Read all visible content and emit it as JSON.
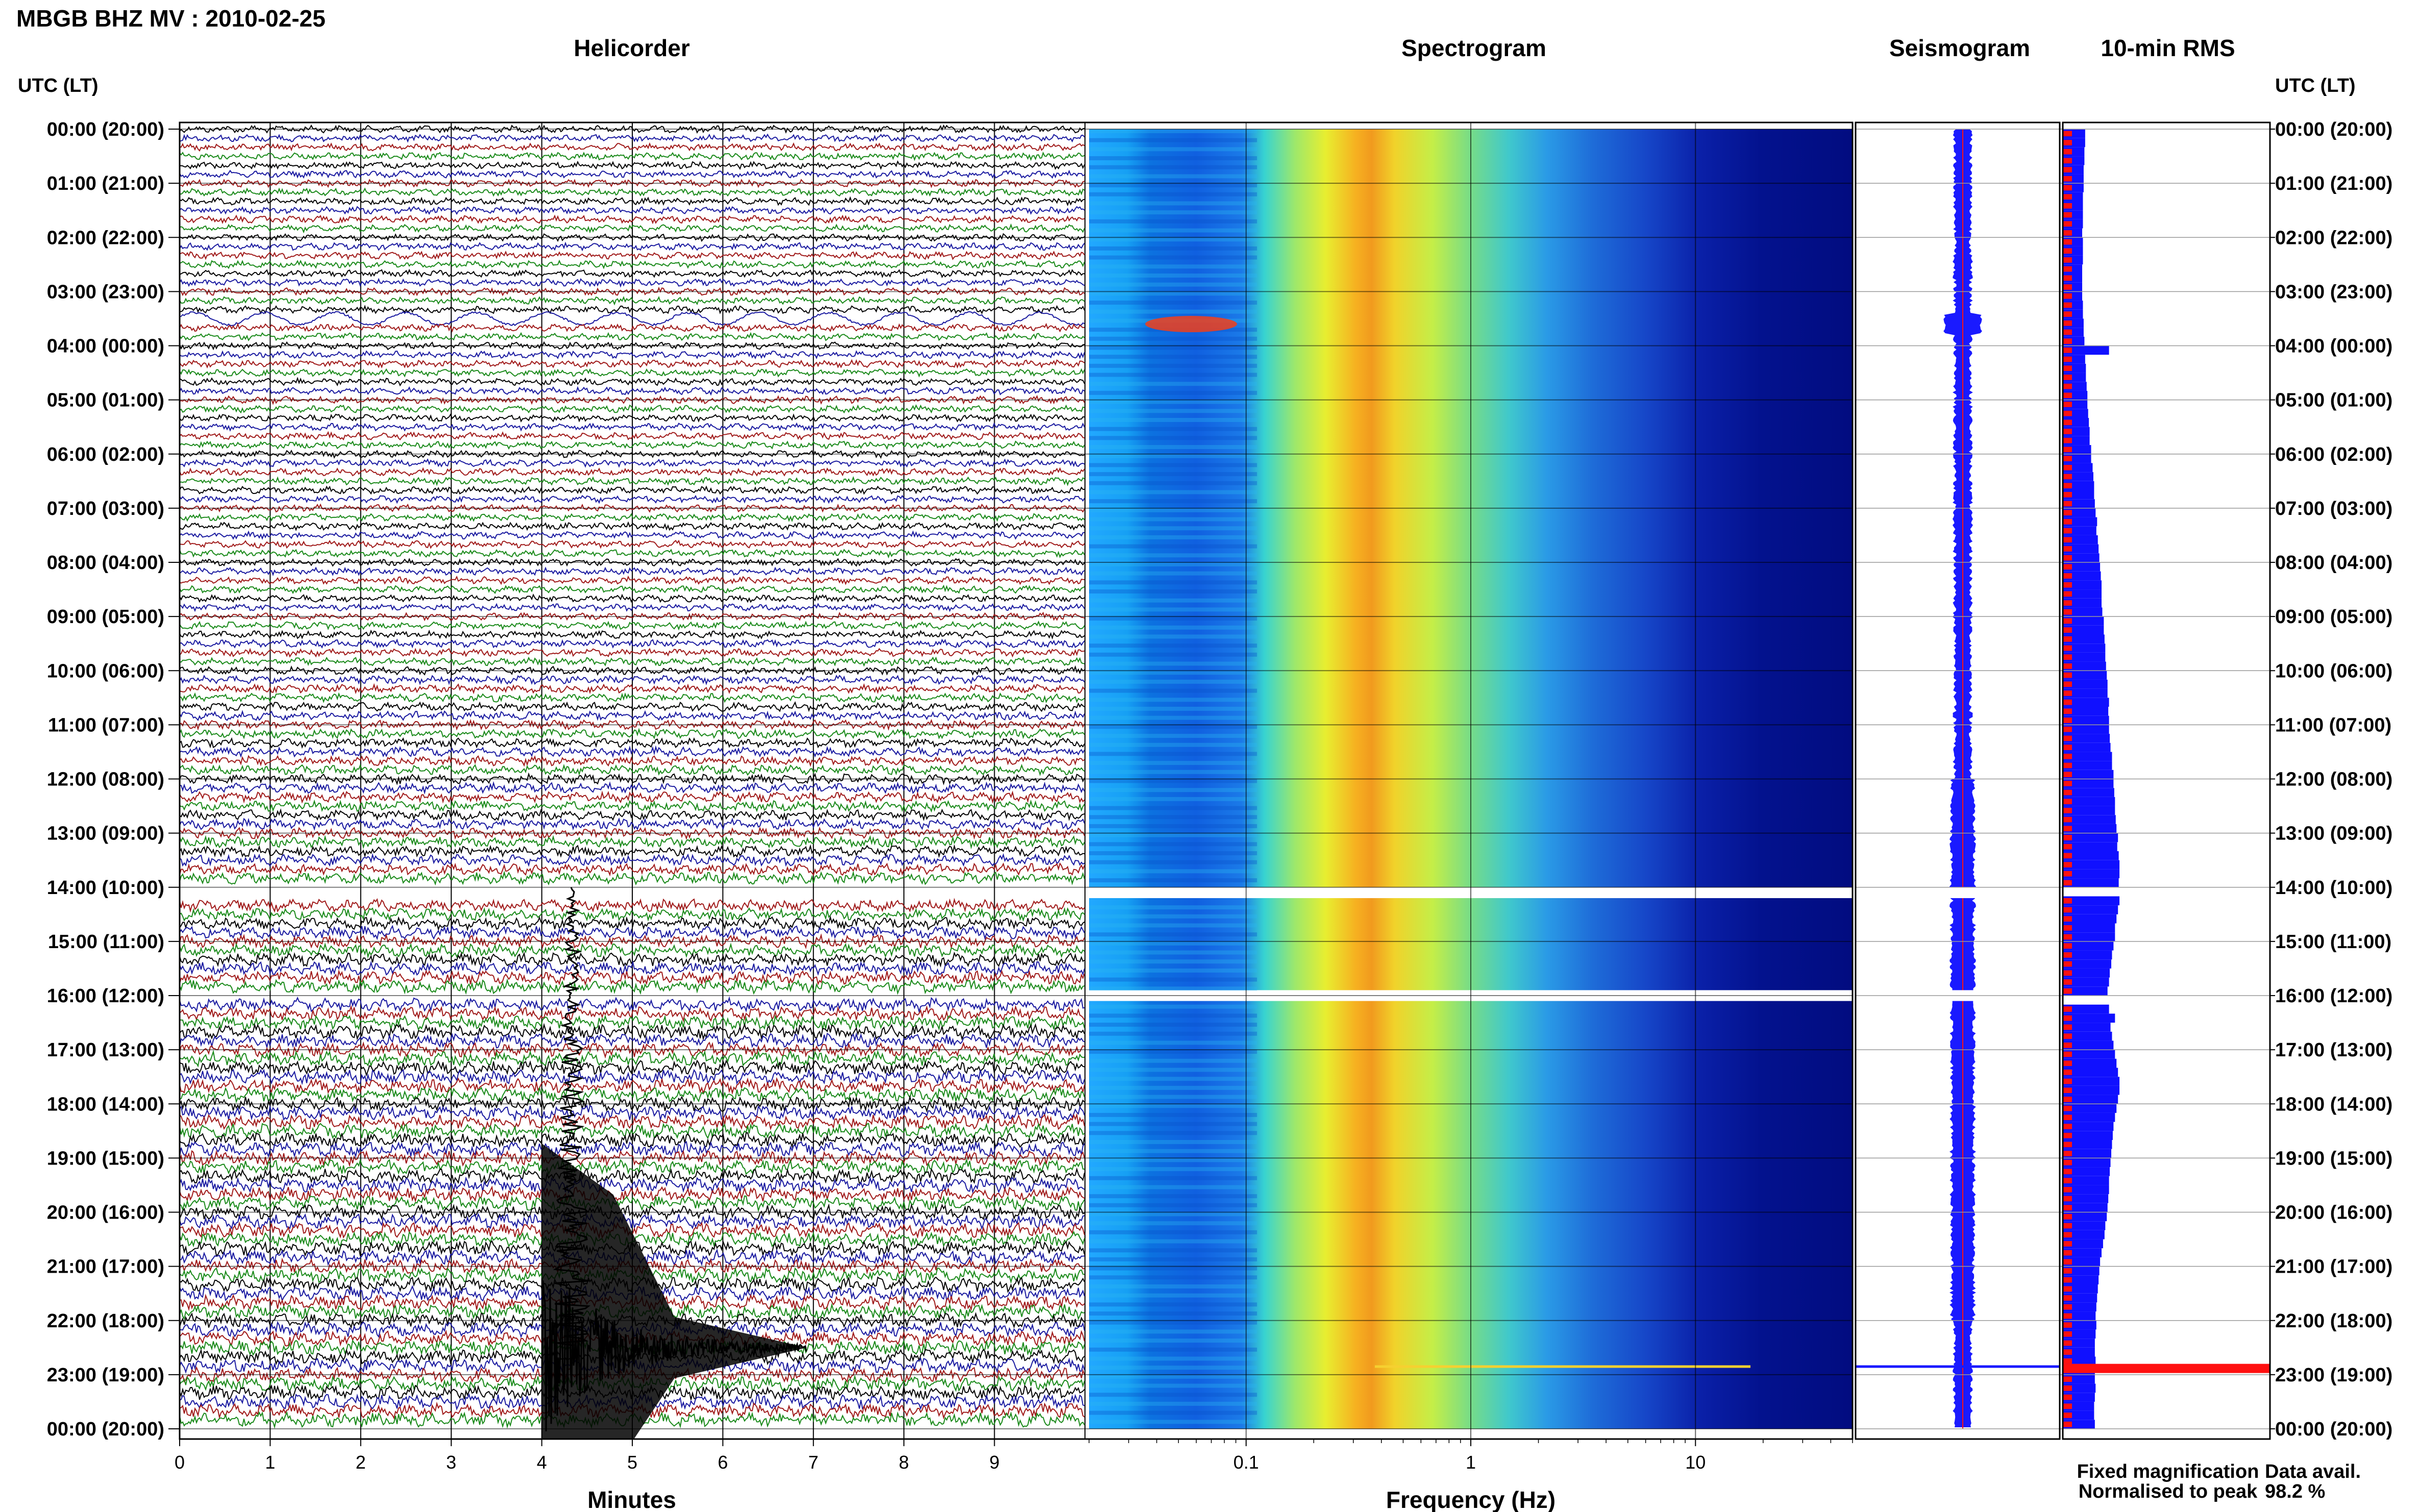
{
  "figure": {
    "title": "MBGB BHZ MV : 2010-02-25",
    "utc_header_left": "UTC (LT)",
    "utc_header_right": "UTC (LT)"
  },
  "panels": {
    "helicorder": {
      "title": "Helicorder",
      "xlabel": "Minutes"
    },
    "spectrogram": {
      "title": "Spectrogram",
      "xlabel": "Frequency (Hz)"
    },
    "seismogram": {
      "title": "Seismogram"
    },
    "rms": {
      "title": "10-min RMS"
    }
  },
  "legend": {
    "fixed": "Fixed magnification",
    "normalised": "Normalised to peak",
    "fixed_color": "#1010ff",
    "normalised_color": "#ff1010"
  },
  "availability": {
    "label": "Data avail.",
    "value": "98.2 %"
  },
  "colors": {
    "trace_cycle": [
      "#000000",
      "#1a1aa0",
      "#a01a1a",
      "#1a8a1a"
    ],
    "rms_fixed": "#1010ff",
    "rms_norm": "#ff1010"
  },
  "chart_data": [
    {
      "type": "line",
      "title": "Helicorder",
      "xlabel": "Minutes",
      "xlim": [
        0,
        10
      ],
      "x_ticks": [
        "0",
        "1",
        "2",
        "3",
        "4",
        "5",
        "6",
        "7",
        "8",
        "9"
      ],
      "row_labels": [
        "00:00 (20:00)",
        "01:00 (21:00)",
        "02:00 (22:00)",
        "03:00 (23:00)",
        "04:00 (00:00)",
        "05:00 (01:00)",
        "06:00 (02:00)",
        "07:00 (03:00)",
        "08:00 (04:00)",
        "09:00 (05:00)",
        "10:00 (06:00)",
        "11:00 (07:00)",
        "12:00 (08:00)",
        "13:00 (09:00)",
        "14:00 (10:00)",
        "15:00 (11:00)",
        "16:00 (12:00)",
        "17:00 (13:00)",
        "18:00 (14:00)",
        "19:00 (15:00)",
        "20:00 (16:00)",
        "21:00 (17:00)",
        "22:00 (18:00)",
        "23:00 (19:00)",
        "00:00 (20:00)"
      ],
      "traces_per_hour": 6,
      "data_gaps_hours": [
        [
          14.0,
          14.2
        ],
        [
          15.9,
          16.1
        ]
      ],
      "notable_events": [
        {
          "label": "large event",
          "start_hour": 22.5,
          "minute": 4.0
        },
        {
          "label": "oscillation",
          "hour": 3.5
        }
      ]
    },
    {
      "type": "heatmap",
      "title": "Spectrogram",
      "xlabel": "Frequency (Hz)",
      "x_scale": "log",
      "xlim": [
        0.02,
        50
      ],
      "x_ticks": [
        "0.1",
        "1",
        "10"
      ],
      "peak_band_hz": [
        0.25,
        0.45
      ],
      "data_gaps_hours": [
        [
          14.0,
          14.2
        ],
        [
          15.9,
          16.1
        ]
      ]
    },
    {
      "type": "line",
      "title": "Seismogram",
      "data_gaps_hours": [
        [
          14.0,
          14.2
        ],
        [
          15.9,
          16.1
        ]
      ]
    },
    {
      "type": "bar",
      "title": "10-min RMS",
      "orientation": "horizontal",
      "series": [
        {
          "name": "Fixed magnification",
          "values": [
            0.3,
            0.3,
            0.29,
            0.29,
            0.28,
            0.28,
            0.28,
            0.27,
            0.27,
            0.27,
            0.27,
            0.26,
            0.27,
            0.27,
            0.27,
            0.26,
            0.26,
            0.26,
            0.26,
            0.27,
            0.27,
            0.28,
            0.28,
            0.29,
            0.62,
            0.3,
            0.31,
            0.31,
            0.32,
            0.33,
            0.33,
            0.34,
            0.35,
            0.36,
            0.36,
            0.38,
            0.38,
            0.4,
            0.41,
            0.42,
            0.42,
            0.43,
            0.44,
            0.46,
            0.45,
            0.47,
            0.48,
            0.49,
            0.5,
            0.51,
            0.52,
            0.52,
            0.52,
            0.53,
            0.55,
            0.55,
            0.56,
            0.57,
            0.57,
            0.58,
            0.59,
            0.6,
            0.6,
            0.62,
            0.61,
            0.62,
            0.62,
            0.63,
            0.64,
            0.66,
            0.66,
            0.68,
            0.68,
            0.69,
            0.7,
            0.7,
            0.71,
            0.72,
            0.74,
            0.73,
            0.75,
            0.76,
            0.76,
            0.75,
            0.77,
            0.76,
            0.74,
            0.72,
            0.7,
            0.7,
            0.68,
            0.66,
            0.65,
            0.63,
            0.62,
            0.6,
            0.6,
            0.62,
            0.7,
            0.64,
            0.66,
            0.68,
            0.7,
            0.72,
            0.74,
            0.76,
            0.76,
            0.74,
            0.72,
            0.7,
            0.68,
            0.67,
            0.66,
            0.65,
            0.64,
            0.63,
            0.62,
            0.62,
            0.61,
            0.6,
            0.59,
            0.57,
            0.56,
            0.54,
            0.52,
            0.5,
            0.49,
            0.48,
            0.47,
            0.46,
            0.45,
            0.44,
            0.45,
            0.44,
            0.43,
            0.43,
            0.44,
            0.43,
            0.43,
            0.44,
            0.43,
            0.42,
            0.42,
            0.43
          ]
        },
        {
          "name": "Normalised to peak",
          "hours_peak": 23.0
        }
      ]
    }
  ]
}
